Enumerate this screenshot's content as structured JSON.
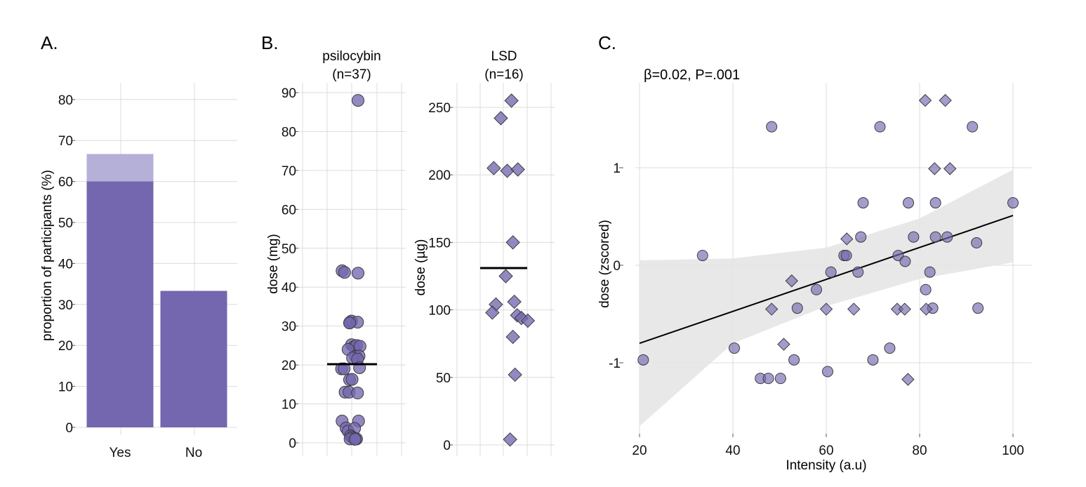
{
  "colors": {
    "fill": "#7467b0",
    "fill_light": "#b5b0d8",
    "stroke": "#3c3c3c",
    "band": "#e6e6e6",
    "line": "#000000"
  },
  "panels": {
    "a": "A.",
    "b": "B.",
    "c": "C."
  },
  "chart_data": [
    {
      "type": "bar",
      "ylabel": "proportion of participants (%)",
      "xlabel": "",
      "categories": [
        "Yes",
        "No"
      ],
      "values": [
        60,
        33.3
      ],
      "overlay_values": [
        66.7,
        null
      ],
      "ylim": [
        0,
        85
      ],
      "yticks": [
        "0",
        "10",
        "20",
        "30",
        "40",
        "50",
        "60",
        "70",
        "80"
      ],
      "grid": true
    },
    {
      "type": "scatter",
      "title": "psilocybin\n(n=37)",
      "title_lines": [
        "psilocybin",
        "(n=37)"
      ],
      "ylabel": "dose (mg)",
      "marker": "circle",
      "ylim": [
        -2,
        92
      ],
      "yticks": [
        "0",
        "10",
        "20",
        "30",
        "40",
        "50",
        "60",
        "70",
        "80",
        "90"
      ],
      "mean": 20.2,
      "points": [
        [
          0.62,
          88
        ],
        [
          0.3,
          44.2
        ],
        [
          0.35,
          43.8
        ],
        [
          0.62,
          43.6
        ],
        [
          0.46,
          31
        ],
        [
          0.49,
          31.3
        ],
        [
          0.61,
          31
        ],
        [
          0.45,
          30.8
        ],
        [
          0.49,
          25.2
        ],
        [
          0.54,
          24.7
        ],
        [
          0.59,
          25
        ],
        [
          0.66,
          24.8
        ],
        [
          0.42,
          24
        ],
        [
          0.57,
          22.2
        ],
        [
          0.64,
          22.3
        ],
        [
          0.51,
          21.8
        ],
        [
          0.61,
          21.5
        ],
        [
          0.29,
          19
        ],
        [
          0.34,
          19
        ],
        [
          0.65,
          19.3
        ],
        [
          0.45,
          16.2
        ],
        [
          0.5,
          16.3
        ],
        [
          0.36,
          13
        ],
        [
          0.44,
          13
        ],
        [
          0.61,
          12.8
        ],
        [
          0.3,
          5.6
        ],
        [
          0.63,
          5.6
        ],
        [
          0.38,
          3.8
        ],
        [
          0.42,
          3
        ],
        [
          0.55,
          3.7
        ],
        [
          0.47,
          1.8
        ],
        [
          0.5,
          1.5
        ],
        [
          0.53,
          1.2
        ],
        [
          0.46,
          1.0
        ],
        [
          0.57,
          1.0
        ],
        [
          0.59,
          1.0
        ],
        [
          0.56,
          0.9
        ]
      ]
    },
    {
      "type": "scatter",
      "title": "LSD\n(n=16)",
      "title_lines": [
        "LSD",
        "(n=16)"
      ],
      "ylabel": "dose (µg)",
      "marker": "diamond",
      "ylim": [
        -5,
        265
      ],
      "yticks": [
        "0",
        "50",
        "100",
        "150",
        "200",
        "250"
      ],
      "mean": 131,
      "points": [
        [
          0.61,
          255
        ],
        [
          0.46,
          242
        ],
        [
          0.36,
          205
        ],
        [
          0.55,
          203
        ],
        [
          0.7,
          204
        ],
        [
          0.63,
          150
        ],
        [
          0.53,
          125
        ],
        [
          0.39,
          104
        ],
        [
          0.65,
          106
        ],
        [
          0.34,
          98
        ],
        [
          0.69,
          96
        ],
        [
          0.75,
          94
        ],
        [
          0.84,
          92
        ],
        [
          0.63,
          80
        ],
        [
          0.66,
          52
        ],
        [
          0.59,
          4
        ]
      ]
    },
    {
      "type": "scatter",
      "annotation": "β=0.02, P=.001",
      "xlabel": "Intensity (a.u)",
      "ylabel": "dose (zscored)",
      "xlim": [
        20,
        104
      ],
      "ylim": [
        -1.65,
        1.72
      ],
      "xticks": [
        "20",
        "40",
        "60",
        "80",
        "100"
      ],
      "yticks": [
        "-1",
        "0",
        "1"
      ],
      "fit": {
        "x": [
          20,
          100
        ],
        "y": [
          -0.8,
          0.51
        ]
      },
      "ci_band": {
        "x": [
          20,
          40,
          60,
          80,
          100
        ],
        "lower": [
          -1.65,
          -0.8,
          -0.42,
          -0.14,
          0.03
        ],
        "upper": [
          0.05,
          0.07,
          0.18,
          0.48,
          0.98
        ]
      },
      "circles": [
        [
          48.3,
          1.42
        ],
        [
          71.5,
          1.42
        ],
        [
          91.3,
          1.42
        ],
        [
          67.9,
          0.64
        ],
        [
          77.6,
          0.64
        ],
        [
          83.4,
          0.64
        ],
        [
          100,
          0.64
        ],
        [
          67.4,
          0.29
        ],
        [
          78.7,
          0.29
        ],
        [
          83.4,
          0.29
        ],
        [
          85.9,
          0.29
        ],
        [
          92.2,
          0.23
        ],
        [
          33.5,
          0.1
        ],
        [
          63.8,
          0.1
        ],
        [
          64.3,
          0.1
        ],
        [
          75.4,
          0.1
        ],
        [
          76.9,
          0.04
        ],
        [
          61.0,
          -0.07
        ],
        [
          66.8,
          -0.07
        ],
        [
          82.2,
          -0.07
        ],
        [
          57.9,
          -0.25
        ],
        [
          81.3,
          -0.25
        ],
        [
          53.8,
          -0.44
        ],
        [
          82.8,
          -0.44
        ],
        [
          92.5,
          -0.44
        ],
        [
          40.3,
          -0.85
        ],
        [
          73.6,
          -0.85
        ],
        [
          20.8,
          -0.97
        ],
        [
          53.1,
          -0.97
        ],
        [
          70.0,
          -0.97
        ],
        [
          60.3,
          -1.09
        ],
        [
          45.9,
          -1.16
        ],
        [
          47.6,
          -1.16
        ],
        [
          50.2,
          -1.16
        ]
      ],
      "diamonds": [
        [
          81.2,
          1.69
        ],
        [
          85.5,
          1.69
        ],
        [
          83.2,
          0.99
        ],
        [
          86.5,
          0.99
        ],
        [
          64.4,
          0.27
        ],
        [
          52.6,
          -0.16
        ],
        [
          48.3,
          -0.45
        ],
        [
          60.0,
          -0.45
        ],
        [
          65.9,
          -0.45
        ],
        [
          75.2,
          -0.45
        ],
        [
          76.8,
          -0.45
        ],
        [
          81.4,
          -0.45
        ],
        [
          50.9,
          -0.81
        ],
        [
          77.5,
          -1.17
        ]
      ]
    }
  ]
}
